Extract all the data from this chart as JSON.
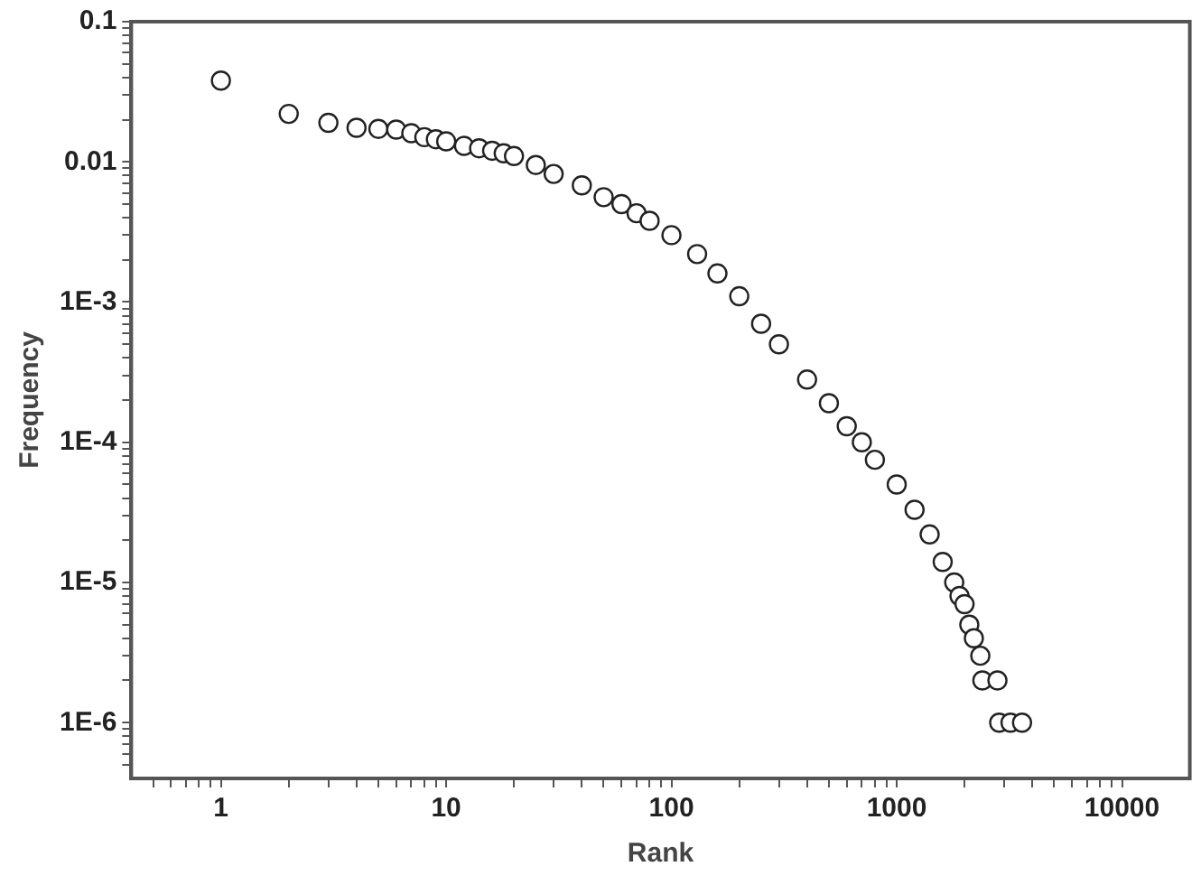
{
  "chart_data": {
    "type": "scatter",
    "xlabel": "Rank",
    "ylabel": "Frequency",
    "log": "xy",
    "marker": "circle",
    "grid": false,
    "legend": false,
    "xlim": [
      0.4,
      20000
    ],
    "xticks": [
      {
        "value": 0.5,
        "label": null
      },
      {
        "value": 0.6,
        "label": null
      },
      {
        "value": 0.7,
        "label": null
      },
      {
        "value": 0.8,
        "label": null
      },
      {
        "value": 0.9,
        "label": null
      },
      1,
      {
        "value": 2,
        "label": null
      },
      {
        "value": 3,
        "label": null
      },
      {
        "value": 4,
        "label": null
      },
      {
        "value": 5,
        "label": null
      },
      {
        "value": 6,
        "label": null
      },
      {
        "value": 7,
        "label": null
      },
      {
        "value": 8,
        "label": null
      },
      {
        "value": 9,
        "label": null
      },
      10,
      {
        "value": 20,
        "label": null
      },
      {
        "value": 30,
        "label": null
      },
      {
        "value": 40,
        "label": null
      },
      {
        "value": 50,
        "label": null
      },
      {
        "value": 60,
        "label": null
      },
      {
        "value": 70,
        "label": null
      },
      {
        "value": 80,
        "label": null
      },
      {
        "value": 90,
        "label": null
      },
      100,
      {
        "value": 200,
        "label": null
      },
      {
        "value": 300,
        "label": null
      },
      {
        "value": 400,
        "label": null
      },
      {
        "value": 500,
        "label": null
      },
      {
        "value": 600,
        "label": null
      },
      {
        "value": 700,
        "label": null
      },
      {
        "value": 800,
        "label": null
      },
      {
        "value": 900,
        "label": null
      },
      1000,
      {
        "value": 2000,
        "label": null
      },
      {
        "value": 3000,
        "label": null
      },
      {
        "value": 4000,
        "label": null
      },
      {
        "value": 5000,
        "label": null
      },
      {
        "value": 6000,
        "label": null
      },
      {
        "value": 7000,
        "label": null
      },
      {
        "value": 8000,
        "label": null
      },
      {
        "value": 9000,
        "label": null
      },
      10000
    ],
    "ylim": [
      4e-07,
      0.1
    ],
    "yticks": [
      {
        "value": 5e-07,
        "label": null
      },
      {
        "value": 6e-07,
        "label": null
      },
      {
        "value": 7e-07,
        "label": null
      },
      {
        "value": 8e-07,
        "label": null
      },
      {
        "value": 9e-07,
        "label": null
      },
      {
        "value": 1e-06,
        "label": "1E-6"
      },
      {
        "value": 2e-06,
        "label": null
      },
      {
        "value": 3e-06,
        "label": null
      },
      {
        "value": 4e-06,
        "label": null
      },
      {
        "value": 5e-06,
        "label": null
      },
      {
        "value": 6e-06,
        "label": null
      },
      {
        "value": 7e-06,
        "label": null
      },
      {
        "value": 8e-06,
        "label": null
      },
      {
        "value": 9e-06,
        "label": null
      },
      {
        "value": 1e-05,
        "label": "1E-5"
      },
      {
        "value": 2e-05,
        "label": null
      },
      {
        "value": 3e-05,
        "label": null
      },
      {
        "value": 4e-05,
        "label": null
      },
      {
        "value": 5e-05,
        "label": null
      },
      {
        "value": 6e-05,
        "label": null
      },
      {
        "value": 7e-05,
        "label": null
      },
      {
        "value": 8e-05,
        "label": null
      },
      {
        "value": 9e-05,
        "label": null
      },
      {
        "value": 0.0001,
        "label": "1E-4"
      },
      {
        "value": 0.0002,
        "label": null
      },
      {
        "value": 0.0003,
        "label": null
      },
      {
        "value": 0.0004,
        "label": null
      },
      {
        "value": 0.0005,
        "label": null
      },
      {
        "value": 0.0006,
        "label": null
      },
      {
        "value": 0.0007,
        "label": null
      },
      {
        "value": 0.0008,
        "label": null
      },
      {
        "value": 0.0009,
        "label": null
      },
      {
        "value": 0.001,
        "label": "1E-3"
      },
      {
        "value": 0.002,
        "label": null
      },
      {
        "value": 0.003,
        "label": null
      },
      {
        "value": 0.004,
        "label": null
      },
      {
        "value": 0.005,
        "label": null
      },
      {
        "value": 0.006,
        "label": null
      },
      {
        "value": 0.007,
        "label": null
      },
      {
        "value": 0.008,
        "label": null
      },
      {
        "value": 0.009,
        "label": null
      },
      0.01,
      {
        "value": 0.02,
        "label": null
      },
      {
        "value": 0.03,
        "label": null
      },
      {
        "value": 0.04,
        "label": null
      },
      {
        "value": 0.05,
        "label": null
      },
      {
        "value": 0.06,
        "label": null
      },
      {
        "value": 0.07,
        "label": null
      },
      {
        "value": 0.08,
        "label": null
      },
      {
        "value": 0.09,
        "label": null
      },
      0.1
    ],
    "series": [
      {
        "color": "#222222",
        "x": [
          1,
          2,
          3,
          4,
          5,
          6,
          7,
          8,
          9,
          10,
          12,
          14,
          16,
          18,
          20,
          25,
          30,
          40,
          50,
          60,
          70,
          80,
          100,
          130,
          160,
          200,
          250,
          300,
          400,
          500,
          600,
          700,
          800,
          1000,
          1200,
          1400,
          1600,
          1800,
          1900,
          2000,
          2100,
          2200,
          2350,
          2400,
          2800,
          2850,
          3200,
          3600
        ],
        "values": [
          0.038,
          0.022,
          0.019,
          0.0175,
          0.0172,
          0.017,
          0.016,
          0.015,
          0.0145,
          0.014,
          0.013,
          0.0125,
          0.012,
          0.0115,
          0.011,
          0.0095,
          0.0082,
          0.0068,
          0.0056,
          0.005,
          0.0043,
          0.0038,
          0.003,
          0.0022,
          0.0016,
          0.0011,
          0.0007,
          0.0005,
          0.00028,
          0.00019,
          0.00013,
          0.0001,
          7.5e-05,
          5e-05,
          3.3e-05,
          2.2e-05,
          1.4e-05,
          1e-05,
          8e-06,
          7e-06,
          5e-06,
          4e-06,
          3e-06,
          2e-06,
          2e-06,
          1e-06,
          1e-06,
          1e-06
        ]
      }
    ]
  }
}
